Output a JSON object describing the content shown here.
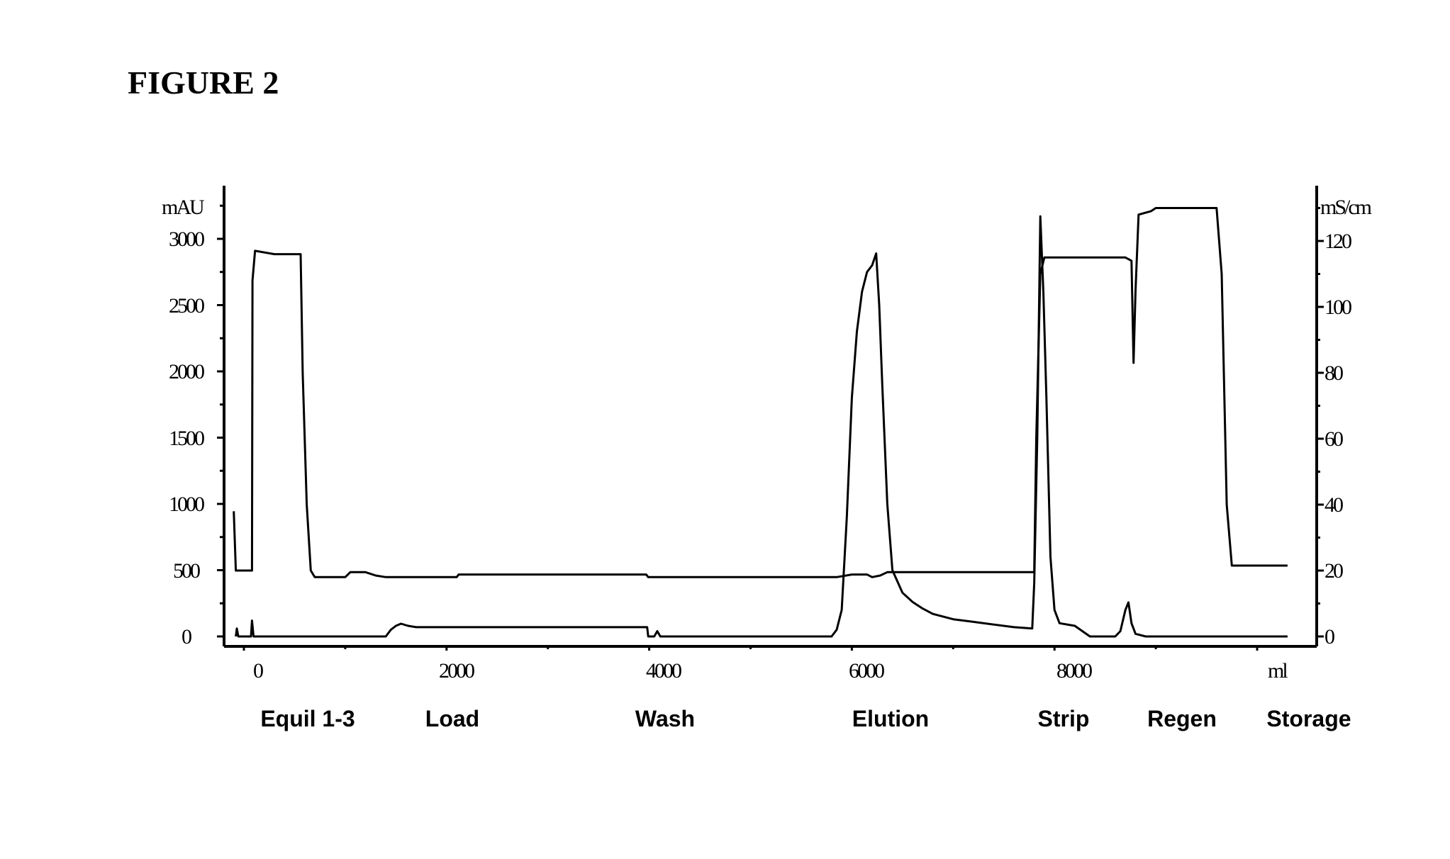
{
  "title": "FIGURE 2",
  "chart_data": {
    "type": "line",
    "title": "FIGURE 2",
    "xlabel": "ml",
    "ylabel_left": "mAU",
    "ylabel_right": "mS/cm",
    "xlim": [
      -200,
      8250
    ],
    "ylim_left": [
      0,
      3300
    ],
    "ylim_right": [
      0,
      130
    ],
    "x_ticks": [
      0,
      2000,
      4000,
      6000,
      8000
    ],
    "x_minor_ticks": [
      1000,
      3000,
      5000,
      7000
    ],
    "y_left_ticks": [
      0,
      500,
      1000,
      1500,
      2000,
      2500,
      3000
    ],
    "y_right_ticks": [
      0,
      20,
      40,
      60,
      80,
      100,
      120
    ],
    "grid": false,
    "phases": [
      {
        "label": "Equil 1-3",
        "x": 360
      },
      {
        "label": "Load",
        "x": 1450
      },
      {
        "label": "Wash",
        "x": 3050
      },
      {
        "label": "Elution",
        "x": 4750
      },
      {
        "label": "Strip",
        "x": 6030
      },
      {
        "label": "Regen",
        "x": 6900
      },
      {
        "label": "Storage",
        "x": 7850
      }
    ],
    "series": [
      {
        "name": "UV (mAU)",
        "axis": "left",
        "points": [
          [
            -80,
            0
          ],
          [
            -70,
            60
          ],
          [
            -55,
            0
          ],
          [
            70,
            0
          ],
          [
            80,
            120
          ],
          [
            95,
            0
          ],
          [
            1400,
            0
          ],
          [
            1450,
            50
          ],
          [
            1500,
            80
          ],
          [
            1550,
            96
          ],
          [
            1620,
            80
          ],
          [
            1700,
            70
          ],
          [
            3980,
            70
          ],
          [
            3990,
            0
          ],
          [
            4050,
            0
          ],
          [
            4080,
            40
          ],
          [
            4110,
            0
          ],
          [
            5800,
            0
          ],
          [
            5850,
            50
          ],
          [
            5900,
            200
          ],
          [
            5950,
            900
          ],
          [
            6000,
            1800
          ],
          [
            6050,
            2300
          ],
          [
            6100,
            2600
          ],
          [
            6150,
            2750
          ],
          [
            6200,
            2800
          ],
          [
            6240,
            2890
          ],
          [
            6270,
            2500
          ],
          [
            6300,
            1900
          ],
          [
            6350,
            1000
          ],
          [
            6400,
            500
          ],
          [
            6500,
            330
          ],
          [
            6600,
            260
          ],
          [
            6700,
            210
          ],
          [
            6800,
            170
          ],
          [
            7000,
            130
          ],
          [
            7200,
            110
          ],
          [
            7400,
            90
          ],
          [
            7600,
            70
          ],
          [
            7780,
            60
          ],
          [
            7800,
            400
          ],
          [
            7830,
            1500
          ],
          [
            7860,
            3170
          ],
          [
            7890,
            2600
          ],
          [
            7920,
            1800
          ],
          [
            7960,
            600
          ],
          [
            8000,
            200
          ],
          [
            8050,
            100
          ],
          [
            8200,
            80
          ],
          [
            8350,
            0
          ],
          [
            8600,
            0
          ],
          [
            8650,
            40
          ],
          [
            8700,
            200
          ],
          [
            8730,
            257
          ],
          [
            8760,
            100
          ],
          [
            8800,
            20
          ],
          [
            8900,
            0
          ],
          [
            10300,
            0
          ]
        ]
      },
      {
        "name": "Conductivity (mS/cm)",
        "axis": "right",
        "points": [
          [
            -100,
            38
          ],
          [
            -80,
            20
          ],
          [
            -60,
            20
          ],
          [
            80,
            20
          ],
          [
            85,
            108
          ],
          [
            110,
            117
          ],
          [
            300,
            116
          ],
          [
            560,
            116
          ],
          [
            580,
            80
          ],
          [
            620,
            40
          ],
          [
            660,
            20
          ],
          [
            700,
            18
          ],
          [
            1000,
            18
          ],
          [
            1050,
            19.5
          ],
          [
            1200,
            19.5
          ],
          [
            1300,
            18.5
          ],
          [
            1400,
            18
          ],
          [
            2100,
            18
          ],
          [
            2120,
            18.8
          ],
          [
            3970,
            18.8
          ],
          [
            3990,
            18
          ],
          [
            5850,
            18
          ],
          [
            6000,
            18.8
          ],
          [
            6150,
            18.8
          ],
          [
            6200,
            18
          ],
          [
            6280,
            18.5
          ],
          [
            6350,
            19.5
          ],
          [
            7800,
            19.5
          ],
          [
            7820,
            60
          ],
          [
            7860,
            110
          ],
          [
            7900,
            115
          ],
          [
            8700,
            115
          ],
          [
            8760,
            114
          ],
          [
            8780,
            83
          ],
          [
            8800,
            105
          ],
          [
            8830,
            128
          ],
          [
            8950,
            129
          ],
          [
            9000,
            130
          ],
          [
            9600,
            130
          ],
          [
            9650,
            110
          ],
          [
            9700,
            40
          ],
          [
            9750,
            21.5
          ],
          [
            9800,
            21.5
          ],
          [
            10300,
            21.5
          ]
        ]
      }
    ]
  },
  "axes": {
    "left_unit": "mAU",
    "right_unit": "mS/cm",
    "x_unit": "ml",
    "left_ticks": [
      "0",
      "500",
      "1000",
      "1500",
      "2000",
      "2500",
      "3000"
    ],
    "right_ticks": [
      "0",
      "20",
      "40",
      "60",
      "80",
      "100",
      "120"
    ],
    "x_ticks": [
      "0",
      "2000",
      "4000",
      "6000",
      "8000"
    ]
  },
  "phases": [
    "Equil 1-3",
    "Load",
    "Wash",
    "Elution",
    "Strip",
    "Regen",
    "Storage"
  ]
}
